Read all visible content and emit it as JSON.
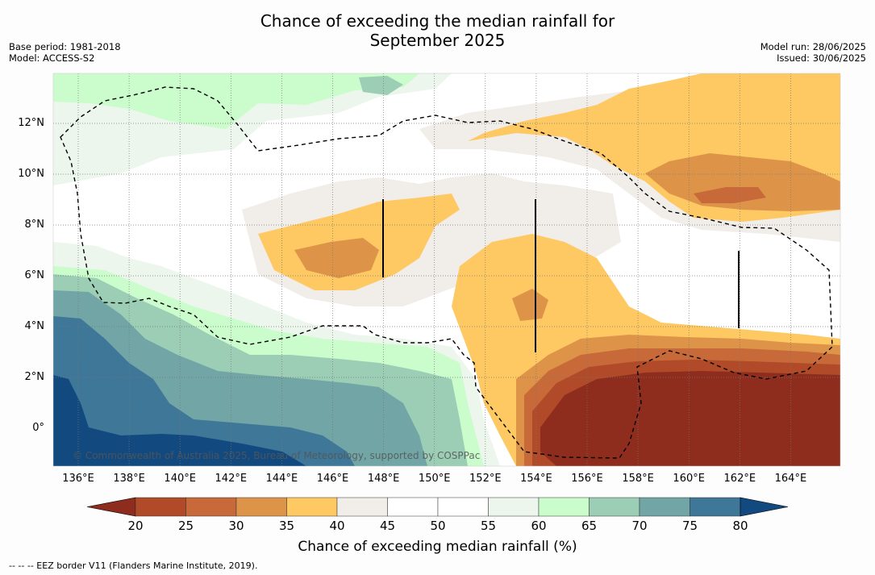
{
  "title": {
    "line1": "Chance of exceeding the median rainfall for",
    "line2": "September 2025"
  },
  "meta_left": {
    "base_period": "Base period: 1981-2018",
    "model": "Model: ACCESS-S2"
  },
  "meta_right": {
    "model_run": "Model run: 28/06/2025",
    "issued": "Issued: 30/06/2025"
  },
  "lat_ticks": [
    "12°N",
    "10°N",
    "8°N",
    "6°N",
    "4°N",
    "2°N",
    "0°"
  ],
  "lon_ticks": [
    "136°E",
    "138°E",
    "140°E",
    "142°E",
    "144°E",
    "146°E",
    "148°E",
    "150°E",
    "152°E",
    "154°E",
    "156°E",
    "158°E",
    "160°E",
    "162°E",
    "164°E"
  ],
  "credit": "© Commonwealth of Australia 2025, Bureau of Meteorology, supported by COSPPac",
  "colorbar": {
    "title": "Chance of exceeding median rainfall (%)",
    "ticks": [
      "20",
      "25",
      "30",
      "35",
      "40",
      "45",
      "50",
      "55",
      "60",
      "65",
      "70",
      "75",
      "80"
    ],
    "colors": [
      "#8e2d1d",
      "#b04a28",
      "#c8693a",
      "#dd9448",
      "#fec862",
      "#f1ede9",
      "#ffffff",
      "#ffffff",
      "#ecf6ec",
      "#cafccc",
      "#9ccdb5",
      "#72a6a6",
      "#3f7798",
      "#124a80"
    ]
  },
  "footnote": "--  --  -- EEZ border V11 (Flanders Marine Institute, 2019)."
}
